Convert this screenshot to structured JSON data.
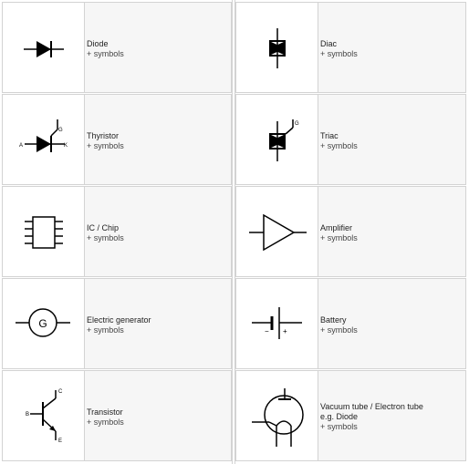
{
  "items": [
    {
      "id": "diode",
      "label": "Diode",
      "sub": "+ symbols",
      "icon": "diode-icon"
    },
    {
      "id": "diac",
      "label": "Diac",
      "sub": "+ symbols",
      "icon": "diac-icon"
    },
    {
      "id": "thyristor",
      "label": "Thyristor",
      "sub": "+ symbols",
      "icon": "thyristor-icon",
      "pins": {
        "a": "A",
        "k": "K",
        "g": "G"
      }
    },
    {
      "id": "triac",
      "label": "Triac",
      "sub": "+ symbols",
      "icon": "triac-icon",
      "pins": {
        "g": "G"
      }
    },
    {
      "id": "ic-chip",
      "label": "IC / Chip",
      "sub": "+ symbols",
      "icon": "ic-chip-icon"
    },
    {
      "id": "amplifier",
      "label": "Amplifier",
      "sub": "+ symbols",
      "icon": "amplifier-icon"
    },
    {
      "id": "electric-generator",
      "label": "Electric generator",
      "sub": "+ symbols",
      "icon": "generator-icon",
      "glyph": "G"
    },
    {
      "id": "battery",
      "label": "Battery",
      "sub": "+ symbols",
      "icon": "battery-icon",
      "minus": "−",
      "plus": "+"
    },
    {
      "id": "transistor",
      "label": "Transistor",
      "sub": "+ symbols",
      "icon": "transistor-icon",
      "pins": {
        "b": "B",
        "c": "C",
        "e": "E"
      }
    },
    {
      "id": "vacuum-tube",
      "label": "Vacuum tube / Electron tube",
      "label2": "e.g. Diode",
      "sub": "+ symbols",
      "icon": "vacuum-tube-icon"
    }
  ]
}
